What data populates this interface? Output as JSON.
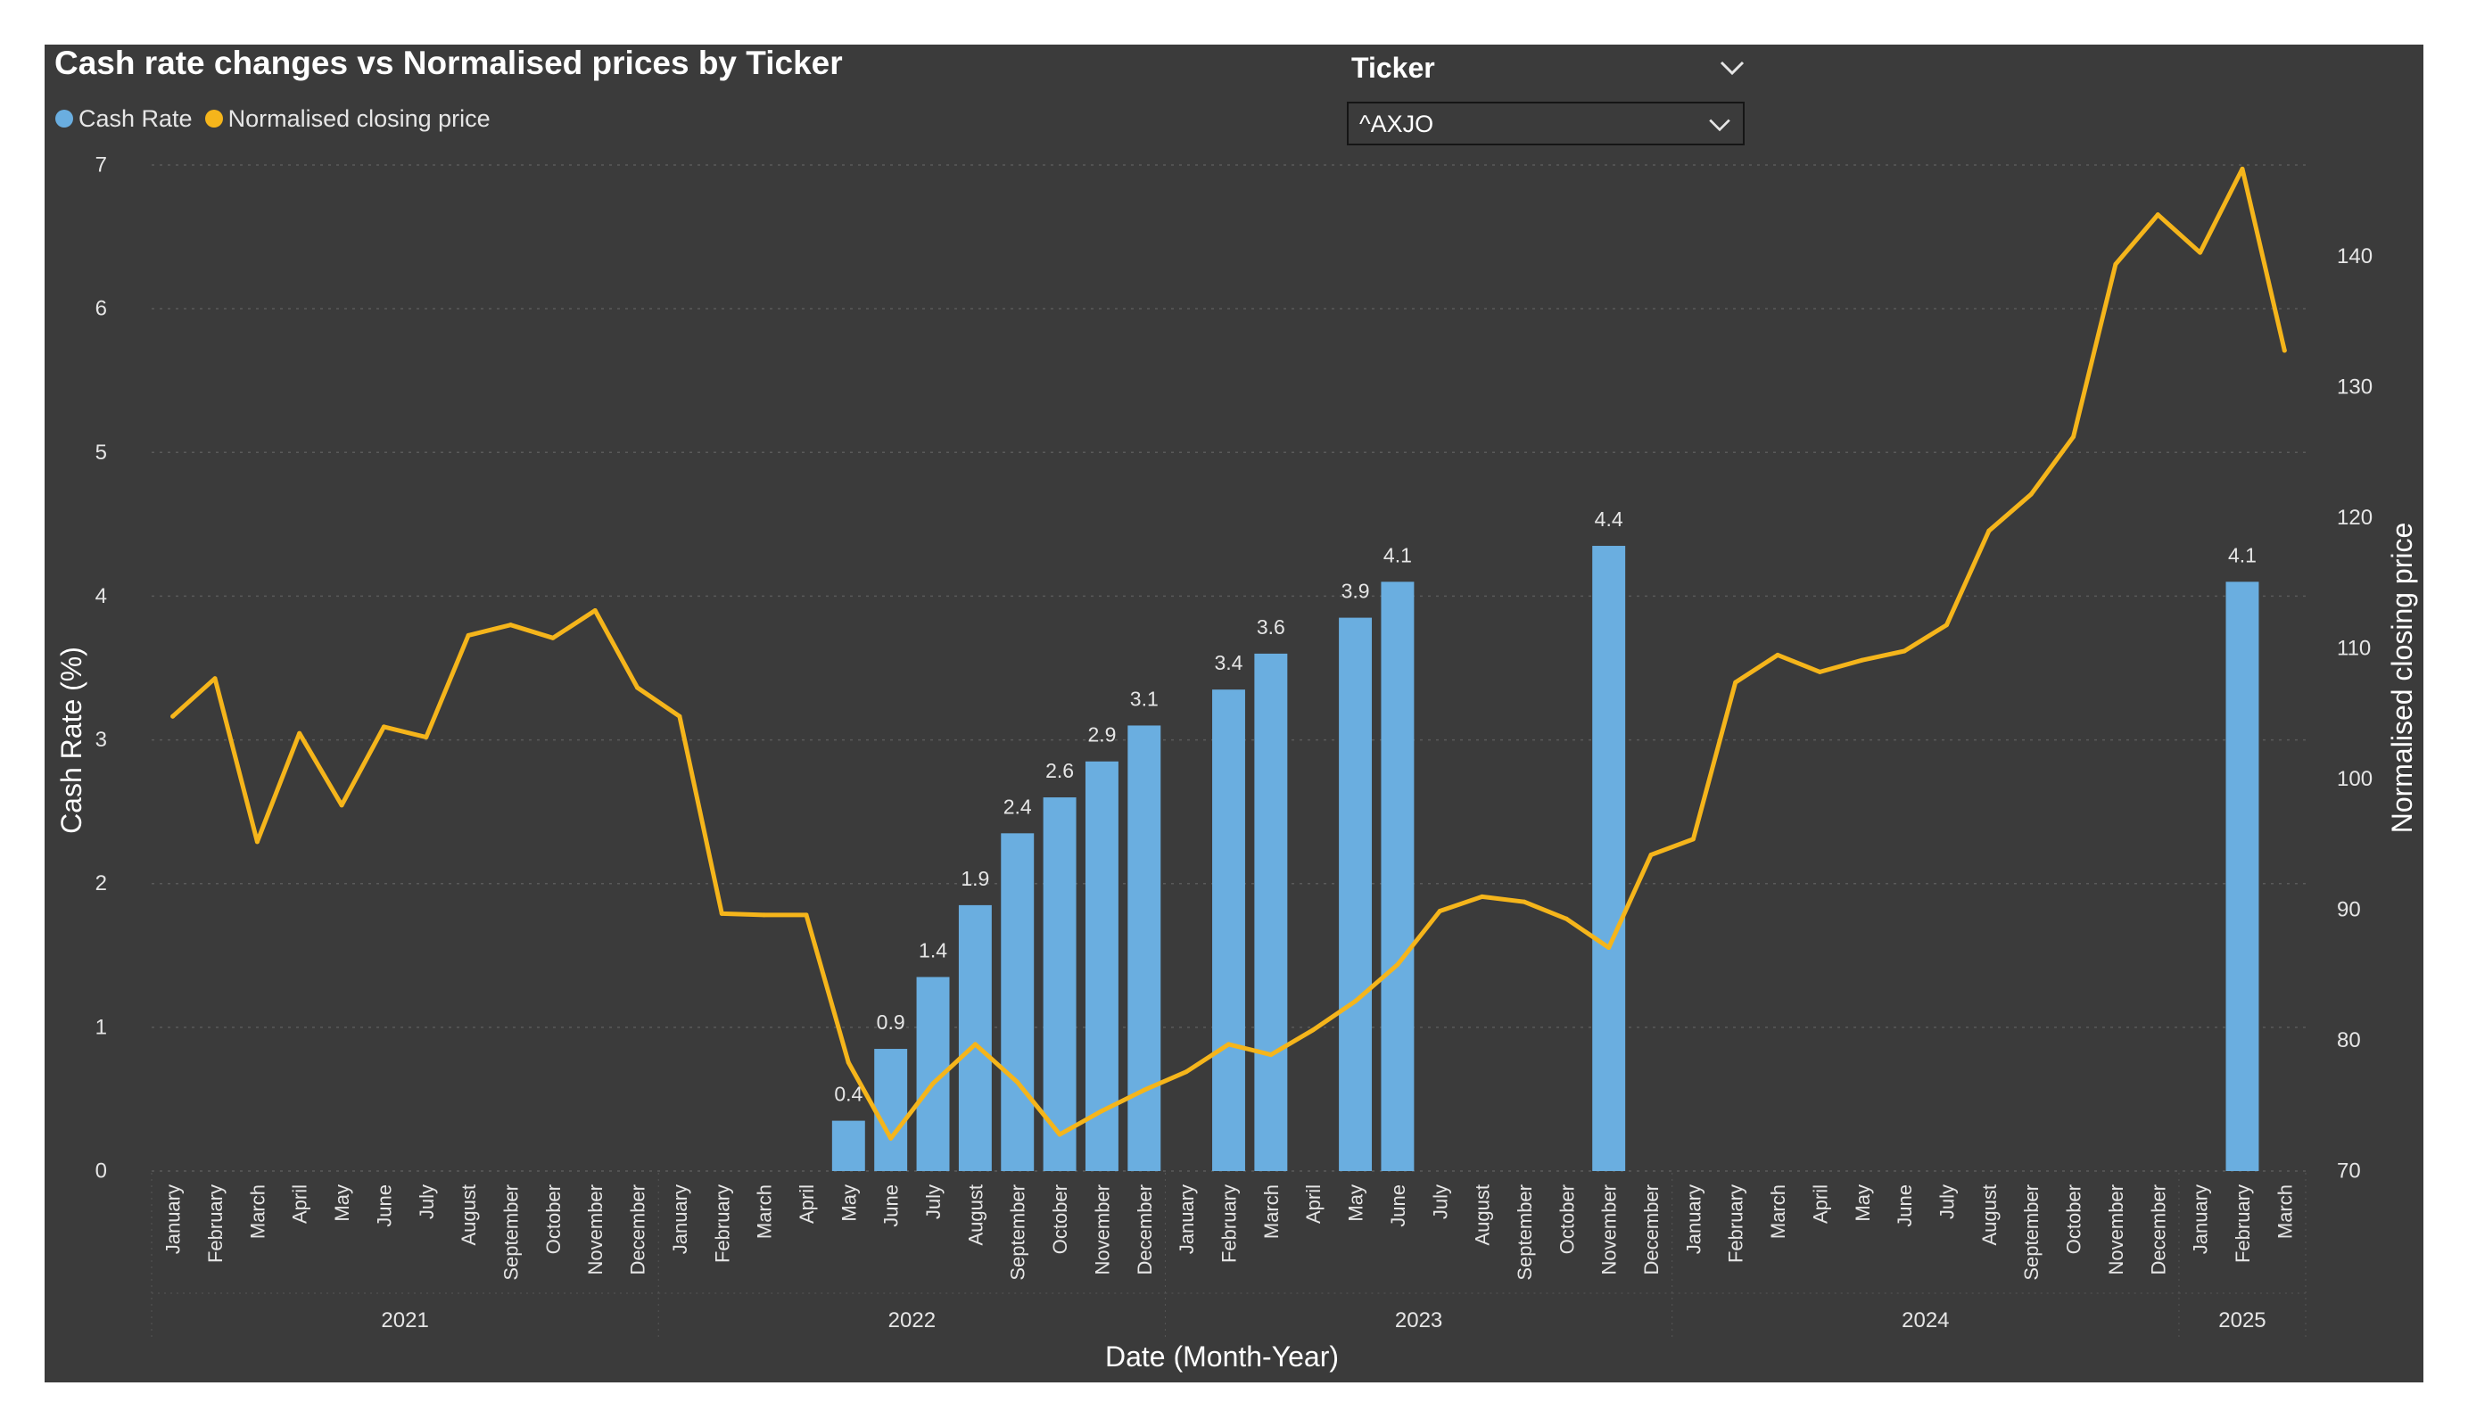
{
  "title": "Cash rate changes vs Normalised prices by Ticker",
  "legend": {
    "cash_rate": "Cash Rate",
    "normalised": "Normalised closing price"
  },
  "slicer": {
    "title": "Ticker",
    "value": "^AXJO",
    "title_icon": "chevron-down-icon",
    "box_icon": "chevron-down-icon"
  },
  "colors": {
    "background": "#3b3b3b",
    "bar": "#6aaee0",
    "line": "#f5b51b",
    "text": "#e6e6e6"
  },
  "chart_data": {
    "type": "bar+line",
    "title": "Cash rate changes vs Normalised prices by Ticker",
    "xlabel": "Date (Month-Year)",
    "ylabel": "Cash Rate (%)",
    "y2label": "Normalised closing price",
    "ylim": [
      0,
      7
    ],
    "y_ticks": [
      "0",
      "1",
      "2",
      "3",
      "4",
      "5",
      "6",
      "7"
    ],
    "y2lim": [
      70,
      147
    ],
    "y2_ticks": [
      "70",
      "80",
      "90",
      "100",
      "110",
      "120",
      "130",
      "140"
    ],
    "grid": true,
    "legend_position": "top-left",
    "years": [
      {
        "label": "2021",
        "months": 12
      },
      {
        "label": "2022",
        "months": 12
      },
      {
        "label": "2023",
        "months": 12
      },
      {
        "label": "2024",
        "months": 12
      },
      {
        "label": "2025",
        "months": 3
      }
    ],
    "categories": [
      "January",
      "February",
      "March",
      "April",
      "May",
      "June",
      "July",
      "August",
      "September",
      "October",
      "November",
      "December",
      "January",
      "February",
      "March",
      "April",
      "May",
      "June",
      "July",
      "August",
      "September",
      "October",
      "November",
      "December",
      "January",
      "February",
      "March",
      "April",
      "May",
      "June",
      "July",
      "August",
      "September",
      "October",
      "November",
      "December",
      "January",
      "February",
      "March",
      "April",
      "May",
      "June",
      "July",
      "August",
      "September",
      "October",
      "November",
      "December",
      "January",
      "February",
      "March"
    ],
    "series": [
      {
        "name": "Cash Rate",
        "type": "bar",
        "values": [
          null,
          null,
          null,
          null,
          null,
          null,
          null,
          null,
          null,
          null,
          null,
          null,
          null,
          null,
          null,
          null,
          0.35,
          0.85,
          1.35,
          1.85,
          2.35,
          2.6,
          2.85,
          3.1,
          null,
          3.35,
          3.6,
          null,
          3.85,
          4.1,
          null,
          null,
          null,
          null,
          4.35,
          null,
          null,
          null,
          null,
          null,
          null,
          null,
          null,
          null,
          null,
          null,
          null,
          null,
          null,
          4.1,
          null
        ],
        "data_labels": [
          "",
          "",
          "",
          "",
          "",
          "",
          "",
          "",
          "",
          "",
          "",
          "",
          "",
          "",
          "",
          "",
          "0.4",
          "0.9",
          "1.4",
          "1.9",
          "2.4",
          "2.6",
          "2.9",
          "3.1",
          "",
          "3.4",
          "3.6",
          "",
          "3.9",
          "4.1",
          "",
          "",
          "",
          "",
          "4.4",
          "",
          "",
          "",
          "",
          "",
          "",
          "",
          "",
          "",
          "",
          "",
          "",
          "",
          "",
          "4.1",
          ""
        ]
      },
      {
        "name": "Normalised closing price",
        "type": "line",
        "values": [
          104.8,
          107.7,
          95.2,
          103.5,
          98.0,
          104.0,
          103.2,
          111.0,
          111.8,
          110.8,
          112.9,
          107.0,
          104.8,
          89.7,
          89.6,
          89.6,
          78.3,
          72.5,
          76.7,
          79.7,
          76.8,
          72.8,
          74.6,
          76.2,
          77.6,
          79.7,
          78.9,
          80.8,
          83.0,
          85.8,
          89.9,
          91.0,
          90.6,
          89.3,
          87.1,
          94.2,
          95.4,
          107.4,
          109.5,
          108.2,
          109.1,
          109.8,
          111.8,
          119.0,
          121.8,
          126.2,
          139.4,
          143.2,
          140.3,
          146.7,
          132.8
        ]
      }
    ]
  }
}
